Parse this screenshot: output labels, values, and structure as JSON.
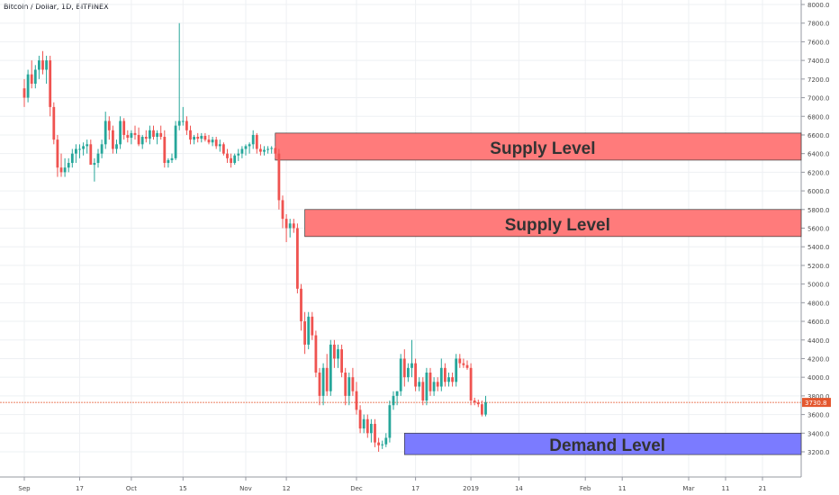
{
  "chart_data": {
    "type": "candlestick",
    "title": "Bitcoin / Dollar, 1D, BITFINEX",
    "colors": {
      "up": "#26a69a",
      "down": "#ef5350",
      "price_line": "#e4572e",
      "supply_fill": "#ff7b7b",
      "demand_fill": "#7b7bff"
    },
    "ylim": [
      3050,
      8100
    ],
    "y_ticks": [
      "3200.0",
      "3400.0",
      "3600.0",
      "3800.0",
      "4000.0",
      "4200.0",
      "4400.0",
      "4600.0",
      "4800.0",
      "5000.0",
      "5200.0",
      "5400.0",
      "5600.0",
      "5800.0",
      "6000.0",
      "6200.0",
      "6400.0",
      "6600.0",
      "6800.0",
      "7000.0",
      "7200.0",
      "7400.0",
      "7600.0",
      "7800.0",
      "8000.0"
    ],
    "x_ticks": [
      {
        "label": "Sep",
        "day": 0
      },
      {
        "label": "17",
        "day": 15
      },
      {
        "label": "Oct",
        "day": 29
      },
      {
        "label": "15",
        "day": 43
      },
      {
        "label": "Nov",
        "day": 60
      },
      {
        "label": "12",
        "day": 71
      },
      {
        "label": "Dec",
        "day": 90
      },
      {
        "label": "17",
        "day": 106
      },
      {
        "label": "2019",
        "day": 121
      },
      {
        "label": "14",
        "day": 134
      },
      {
        "label": "Feb",
        "day": 152
      },
      {
        "label": "11",
        "day": 162
      },
      {
        "label": "Mar",
        "day": 180
      },
      {
        "label": "11",
        "day": 190
      },
      {
        "label": "21",
        "day": 200
      }
    ],
    "current_price": {
      "value": 3730,
      "label": "3730.8"
    },
    "zones": [
      {
        "type": "supply",
        "label": "Supply Level",
        "start_day": 68,
        "y_low": 6330,
        "y_high": 6620
      },
      {
        "type": "supply",
        "label": "Supply Level",
        "start_day": 76,
        "y_low": 5510,
        "y_high": 5800
      },
      {
        "type": "demand",
        "label": "Demand Level",
        "start_day": 103,
        "y_low": 3170,
        "y_high": 3400
      }
    ],
    "series": [
      {
        "o": 7100,
        "h": 7200,
        "l": 6900,
        "c": 7000
      },
      {
        "o": 7000,
        "h": 7300,
        "l": 6950,
        "c": 7250
      },
      {
        "o": 7250,
        "h": 7400,
        "l": 7100,
        "c": 7150
      },
      {
        "o": 7150,
        "h": 7350,
        "l": 7100,
        "c": 7300
      },
      {
        "o": 7300,
        "h": 7450,
        "l": 7200,
        "c": 7400
      },
      {
        "o": 7400,
        "h": 7500,
        "l": 7250,
        "c": 7300
      },
      {
        "o": 7300,
        "h": 7450,
        "l": 7150,
        "c": 7400
      },
      {
        "o": 7400,
        "h": 7450,
        "l": 6800,
        "c": 6900
      },
      {
        "o": 6900,
        "h": 6950,
        "l": 6500,
        "c": 6550
      },
      {
        "o": 6550,
        "h": 6600,
        "l": 6150,
        "c": 6250
      },
      {
        "o": 6250,
        "h": 6400,
        "l": 6150,
        "c": 6200
      },
      {
        "o": 6200,
        "h": 6350,
        "l": 6150,
        "c": 6250
      },
      {
        "o": 6250,
        "h": 6350,
        "l": 6200,
        "c": 6300
      },
      {
        "o": 6300,
        "h": 6450,
        "l": 6250,
        "c": 6400
      },
      {
        "o": 6400,
        "h": 6500,
        "l": 6300,
        "c": 6450
      },
      {
        "o": 6450,
        "h": 6500,
        "l": 6350,
        "c": 6450
      },
      {
        "o": 6450,
        "h": 6520,
        "l": 6380,
        "c": 6480
      },
      {
        "o": 6480,
        "h": 6550,
        "l": 6400,
        "c": 6500
      },
      {
        "o": 6500,
        "h": 6550,
        "l": 6300,
        "c": 6280
      },
      {
        "o": 6280,
        "h": 6350,
        "l": 6100,
        "c": 6300
      },
      {
        "o": 6300,
        "h": 6450,
        "l": 6250,
        "c": 6400
      },
      {
        "o": 6400,
        "h": 6550,
        "l": 6350,
        "c": 6500
      },
      {
        "o": 6500,
        "h": 6850,
        "l": 6450,
        "c": 6750
      },
      {
        "o": 6750,
        "h": 6800,
        "l": 6550,
        "c": 6650
      },
      {
        "o": 6650,
        "h": 6700,
        "l": 6400,
        "c": 6450
      },
      {
        "o": 6450,
        "h": 6550,
        "l": 6400,
        "c": 6500
      },
      {
        "o": 6500,
        "h": 6800,
        "l": 6450,
        "c": 6750
      },
      {
        "o": 6750,
        "h": 6780,
        "l": 6550,
        "c": 6600
      },
      {
        "o": 6600,
        "h": 6650,
        "l": 6520,
        "c": 6570
      },
      {
        "o": 6570,
        "h": 6650,
        "l": 6500,
        "c": 6620
      },
      {
        "o": 6620,
        "h": 6700,
        "l": 6550,
        "c": 6600
      },
      {
        "o": 6600,
        "h": 6680,
        "l": 6480,
        "c": 6500
      },
      {
        "o": 6500,
        "h": 6600,
        "l": 6450,
        "c": 6580
      },
      {
        "o": 6580,
        "h": 6650,
        "l": 6520,
        "c": 6560
      },
      {
        "o": 6560,
        "h": 6700,
        "l": 6500,
        "c": 6650
      },
      {
        "o": 6650,
        "h": 6700,
        "l": 6550,
        "c": 6580
      },
      {
        "o": 6580,
        "h": 6650,
        "l": 6500,
        "c": 6620
      },
      {
        "o": 6620,
        "h": 6700,
        "l": 6550,
        "c": 6580
      },
      {
        "o": 6580,
        "h": 6650,
        "l": 6250,
        "c": 6300
      },
      {
        "o": 6300,
        "h": 6350,
        "l": 6250,
        "c": 6330
      },
      {
        "o": 6330,
        "h": 6400,
        "l": 6300,
        "c": 6350
      },
      {
        "o": 6350,
        "h": 6750,
        "l": 6330,
        "c": 6700
      },
      {
        "o": 6700,
        "h": 7800,
        "l": 6650,
        "c": 6750
      },
      {
        "o": 6750,
        "h": 6900,
        "l": 6700,
        "c": 6750
      },
      {
        "o": 6750,
        "h": 6800,
        "l": 6600,
        "c": 6650
      },
      {
        "o": 6650,
        "h": 6700,
        "l": 6500,
        "c": 6550
      },
      {
        "o": 6550,
        "h": 6600,
        "l": 6500,
        "c": 6580
      },
      {
        "o": 6580,
        "h": 6620,
        "l": 6520,
        "c": 6560
      },
      {
        "o": 6560,
        "h": 6620,
        "l": 6520,
        "c": 6590
      },
      {
        "o": 6590,
        "h": 6620,
        "l": 6530,
        "c": 6550
      },
      {
        "o": 6550,
        "h": 6600,
        "l": 6500,
        "c": 6520
      },
      {
        "o": 6520,
        "h": 6580,
        "l": 6480,
        "c": 6550
      },
      {
        "o": 6550,
        "h": 6580,
        "l": 6450,
        "c": 6480
      },
      {
        "o": 6480,
        "h": 6550,
        "l": 6420,
        "c": 6500
      },
      {
        "o": 6500,
        "h": 6520,
        "l": 6380,
        "c": 6400
      },
      {
        "o": 6400,
        "h": 6450,
        "l": 6300,
        "c": 6350
      },
      {
        "o": 6350,
        "h": 6400,
        "l": 6250,
        "c": 6300
      },
      {
        "o": 6300,
        "h": 6400,
        "l": 6280,
        "c": 6380
      },
      {
        "o": 6380,
        "h": 6450,
        "l": 6320,
        "c": 6400
      },
      {
        "o": 6400,
        "h": 6480,
        "l": 6350,
        "c": 6450
      },
      {
        "o": 6450,
        "h": 6500,
        "l": 6380,
        "c": 6480
      },
      {
        "o": 6480,
        "h": 6520,
        "l": 6400,
        "c": 6500
      },
      {
        "o": 6500,
        "h": 6650,
        "l": 6450,
        "c": 6600
      },
      {
        "o": 6600,
        "h": 6620,
        "l": 6400,
        "c": 6450
      },
      {
        "o": 6450,
        "h": 6500,
        "l": 6380,
        "c": 6420
      },
      {
        "o": 6420,
        "h": 6480,
        "l": 6380,
        "c": 6440
      },
      {
        "o": 6440,
        "h": 6480,
        "l": 6400,
        "c": 6450
      },
      {
        "o": 6450,
        "h": 6480,
        "l": 6400,
        "c": 6460
      },
      {
        "o": 6460,
        "h": 6480,
        "l": 6350,
        "c": 6400
      },
      {
        "o": 6400,
        "h": 6450,
        "l": 5800,
        "c": 5900
      },
      {
        "o": 5900,
        "h": 5950,
        "l": 5600,
        "c": 5700
      },
      {
        "o": 5700,
        "h": 5750,
        "l": 5450,
        "c": 5600
      },
      {
        "o": 5600,
        "h": 5700,
        "l": 5500,
        "c": 5650
      },
      {
        "o": 5650,
        "h": 5700,
        "l": 5550,
        "c": 5600
      },
      {
        "o": 5600,
        "h": 5650,
        "l": 4900,
        "c": 4950
      },
      {
        "o": 4950,
        "h": 5000,
        "l": 4500,
        "c": 4600
      },
      {
        "o": 4600,
        "h": 4700,
        "l": 4250,
        "c": 4350
      },
      {
        "o": 4350,
        "h": 4700,
        "l": 4300,
        "c": 4650
      },
      {
        "o": 4650,
        "h": 4700,
        "l": 4400,
        "c": 4450
      },
      {
        "o": 4450,
        "h": 4500,
        "l": 4000,
        "c": 4050
      },
      {
        "o": 4050,
        "h": 4100,
        "l": 3700,
        "c": 3800
      },
      {
        "o": 3800,
        "h": 4150,
        "l": 3700,
        "c": 4100
      },
      {
        "o": 4100,
        "h": 4250,
        "l": 3800,
        "c": 3850
      },
      {
        "o": 3850,
        "h": 4400,
        "l": 3800,
        "c": 4350
      },
      {
        "o": 4350,
        "h": 4400,
        "l": 4100,
        "c": 4200
      },
      {
        "o": 4200,
        "h": 4350,
        "l": 4100,
        "c": 4300
      },
      {
        "o": 4300,
        "h": 4350,
        "l": 4000,
        "c": 4050
      },
      {
        "o": 4050,
        "h": 4100,
        "l": 3700,
        "c": 3800
      },
      {
        "o": 3800,
        "h": 4050,
        "l": 3700,
        "c": 4000
      },
      {
        "o": 4000,
        "h": 4100,
        "l": 3800,
        "c": 3850
      },
      {
        "o": 3850,
        "h": 3950,
        "l": 3600,
        "c": 3650
      },
      {
        "o": 3650,
        "h": 3700,
        "l": 3400,
        "c": 3450
      },
      {
        "o": 3450,
        "h": 3600,
        "l": 3400,
        "c": 3550
      },
      {
        "o": 3550,
        "h": 3600,
        "l": 3350,
        "c": 3400
      },
      {
        "o": 3400,
        "h": 3550,
        "l": 3300,
        "c": 3500
      },
      {
        "o": 3500,
        "h": 3550,
        "l": 3250,
        "c": 3300
      },
      {
        "o": 3300,
        "h": 3350,
        "l": 3200,
        "c": 3270
      },
      {
        "o": 3270,
        "h": 3320,
        "l": 3230,
        "c": 3280
      },
      {
        "o": 3280,
        "h": 3400,
        "l": 3250,
        "c": 3350
      },
      {
        "o": 3350,
        "h": 3750,
        "l": 3300,
        "c": 3700
      },
      {
        "o": 3700,
        "h": 3850,
        "l": 3650,
        "c": 3800
      },
      {
        "o": 3800,
        "h": 3850,
        "l": 3700,
        "c": 3850
      },
      {
        "o": 3850,
        "h": 4250,
        "l": 3800,
        "c": 4200
      },
      {
        "o": 4200,
        "h": 4300,
        "l": 3900,
        "c": 4000
      },
      {
        "o": 4000,
        "h": 4150,
        "l": 3950,
        "c": 4100
      },
      {
        "o": 4100,
        "h": 4400,
        "l": 4000,
        "c": 4150
      },
      {
        "o": 4150,
        "h": 4200,
        "l": 3850,
        "c": 3900
      },
      {
        "o": 3900,
        "h": 4000,
        "l": 3850,
        "c": 3950
      },
      {
        "o": 3950,
        "h": 4000,
        "l": 3700,
        "c": 3750
      },
      {
        "o": 3750,
        "h": 4100,
        "l": 3700,
        "c": 4050
      },
      {
        "o": 4050,
        "h": 4100,
        "l": 3800,
        "c": 3850
      },
      {
        "o": 3850,
        "h": 4000,
        "l": 3800,
        "c": 3950
      },
      {
        "o": 3950,
        "h": 4000,
        "l": 3850,
        "c": 3900
      },
      {
        "o": 3900,
        "h": 4200,
        "l": 3850,
        "c": 4100
      },
      {
        "o": 4100,
        "h": 4150,
        "l": 3900,
        "c": 3950
      },
      {
        "o": 3950,
        "h": 4050,
        "l": 3900,
        "c": 4000
      },
      {
        "o": 4000,
        "h": 4050,
        "l": 3900,
        "c": 3950
      },
      {
        "o": 3950,
        "h": 4250,
        "l": 3900,
        "c": 4200
      },
      {
        "o": 4200,
        "h": 4250,
        "l": 4100,
        "c": 4150
      },
      {
        "o": 4150,
        "h": 4200,
        "l": 4100,
        "c": 4130
      },
      {
        "o": 4130,
        "h": 4180,
        "l": 4080,
        "c": 4100
      },
      {
        "o": 4100,
        "h": 4150,
        "l": 3700,
        "c": 3750
      },
      {
        "o": 3750,
        "h": 3780,
        "l": 3700,
        "c": 3730
      },
      {
        "o": 3730,
        "h": 3760,
        "l": 3680,
        "c": 3710
      },
      {
        "o": 3710,
        "h": 3750,
        "l": 3580,
        "c": 3600
      },
      {
        "o": 3600,
        "h": 3800,
        "l": 3580,
        "c": 3730
      }
    ]
  }
}
